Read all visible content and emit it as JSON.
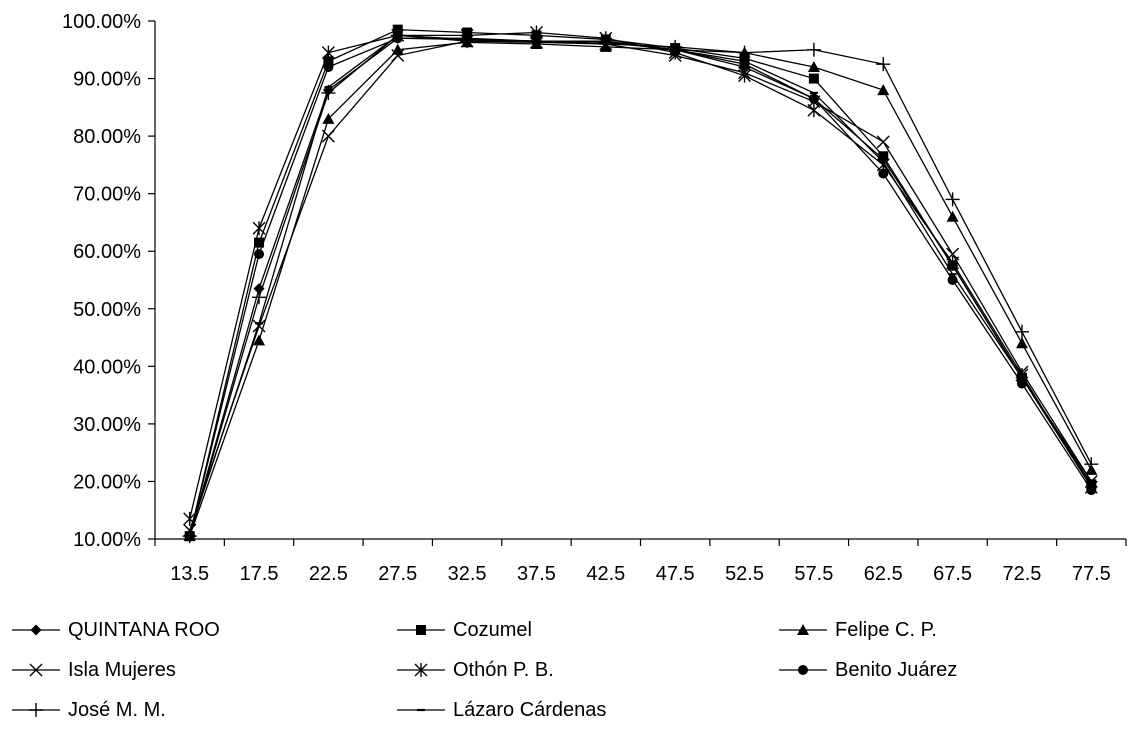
{
  "chart_data": {
    "type": "line",
    "title": "",
    "xlabel": "",
    "ylabel": "",
    "x": [
      "13.5",
      "17.5",
      "22.5",
      "27.5",
      "32.5",
      "37.5",
      "42.5",
      "47.5",
      "52.5",
      "57.5",
      "62.5",
      "67.5",
      "72.5",
      "77.5"
    ],
    "y_ticks": [
      "10.00%",
      "20.00%",
      "30.00%",
      "40.00%",
      "50.00%",
      "60.00%",
      "70.00%",
      "80.00%",
      "90.00%",
      "100.00%"
    ],
    "ylim": [
      10,
      100
    ],
    "grid": false,
    "legend_position": "bottom",
    "series": [
      {
        "name": "QUINTANA ROO",
        "marker": "diamond",
        "color": "#000000",
        "values": [
          10.5,
          53.5,
          88.0,
          97.0,
          96.8,
          96.5,
          96.3,
          95.0,
          92.5,
          86.5,
          76.0,
          57.5,
          38.0,
          19.0
        ]
      },
      {
        "name": "Cozumel",
        "marker": "square",
        "color": "#000000",
        "values": [
          10.5,
          61.5,
          93.0,
          98.5,
          98.0,
          97.5,
          96.8,
          95.3,
          93.5,
          90.0,
          76.5,
          57.5,
          38.0,
          19.5
        ]
      },
      {
        "name": "Felipe C. P.",
        "marker": "triangle",
        "color": "#000000",
        "values": [
          10.5,
          44.5,
          83.0,
          95.0,
          96.3,
          96.0,
          95.5,
          95.0,
          94.5,
          92.0,
          88.0,
          66.0,
          44.0,
          22.0
        ]
      },
      {
        "name": "Isla Mujeres",
        "marker": "x",
        "color": "#000000",
        "values": [
          11.5,
          47.0,
          80.0,
          94.0,
          96.5,
          96.3,
          96.0,
          94.0,
          91.0,
          86.0,
          79.0,
          59.5,
          39.0,
          20.0
        ]
      },
      {
        "name": "Othón P. B.",
        "marker": "star",
        "color": "#000000",
        "values": [
          13.5,
          64.0,
          94.5,
          97.5,
          97.5,
          98.0,
          97.0,
          94.5,
          90.5,
          84.5,
          75.0,
          58.0,
          38.5,
          19.0
        ]
      },
      {
        "name": "Benito Juárez",
        "marker": "circle",
        "color": "#000000",
        "values": [
          10.5,
          59.5,
          92.0,
          97.0,
          97.0,
          96.5,
          96.5,
          95.0,
          92.0,
          86.5,
          73.5,
          55.0,
          37.0,
          18.5
        ]
      },
      {
        "name": "José M. M.",
        "marker": "plus",
        "color": "#000000",
        "values": [
          10.5,
          52.0,
          87.5,
          97.5,
          96.5,
          96.5,
          96.0,
          95.5,
          94.5,
          95.0,
          92.5,
          69.0,
          46.0,
          23.0
        ]
      },
      {
        "name": "Lázaro Cárdenas",
        "marker": "dash",
        "color": "#000000",
        "values": [
          11.0,
          47.5,
          88.5,
          97.5,
          96.8,
          96.5,
          96.5,
          95.0,
          93.0,
          87.5,
          75.5,
          56.0,
          38.0,
          20.0
        ]
      }
    ]
  }
}
